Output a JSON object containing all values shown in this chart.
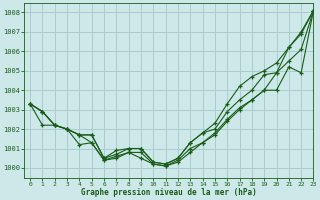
{
  "title": "Graphe pression niveau de la mer (hPa)",
  "bg_color": "#cce8e8",
  "grid_color": "#aacccc",
  "line_color": "#1a5c1a",
  "xlim": [
    -0.5,
    23
  ],
  "ylim": [
    999.5,
    1008.5
  ],
  "xticks": [
    0,
    1,
    2,
    3,
    4,
    5,
    6,
    7,
    8,
    9,
    10,
    11,
    12,
    13,
    14,
    15,
    16,
    17,
    18,
    19,
    20,
    21,
    22,
    23
  ],
  "yticks": [
    1000,
    1001,
    1002,
    1003,
    1004,
    1005,
    1006,
    1007,
    1008
  ],
  "series": [
    [
      1003.3,
      1002.9,
      1002.2,
      1002.0,
      1001.7,
      1001.7,
      1000.5,
      1000.7,
      1001.0,
      1001.0,
      1000.3,
      1000.2,
      1000.5,
      1001.3,
      1001.8,
      1002.0,
      1002.9,
      1003.5,
      1004.0,
      1004.8,
      1004.9,
      1006.2,
      1006.9,
      1008.1
    ],
    [
      1003.3,
      1002.2,
      1002.2,
      1002.0,
      1001.2,
      1001.3,
      1000.4,
      1000.5,
      1000.8,
      1000.5,
      1000.2,
      1000.1,
      1000.3,
      1000.8,
      1001.3,
      1001.8,
      1002.5,
      1003.1,
      1003.5,
      1004.0,
      1004.0,
      1005.2,
      1004.9,
      1008.1
    ],
    [
      1003.3,
      1002.9,
      1002.2,
      1002.0,
      1001.7,
      1001.3,
      1000.4,
      1000.6,
      1000.8,
      1000.8,
      1000.2,
      1000.1,
      1000.4,
      1001.0,
      1001.3,
      1001.7,
      1002.4,
      1003.0,
      1003.5,
      1004.0,
      1004.9,
      1005.5,
      1006.1,
      1008.1
    ],
    [
      1003.3,
      1002.9,
      1002.2,
      1002.0,
      1001.7,
      1001.7,
      1000.5,
      1000.9,
      1001.0,
      1001.0,
      1000.3,
      1000.2,
      1000.5,
      1001.3,
      1001.8,
      1002.3,
      1003.3,
      1004.2,
      1004.7,
      1005.0,
      1005.4,
      1006.2,
      1007.0,
      1008.1
    ]
  ]
}
